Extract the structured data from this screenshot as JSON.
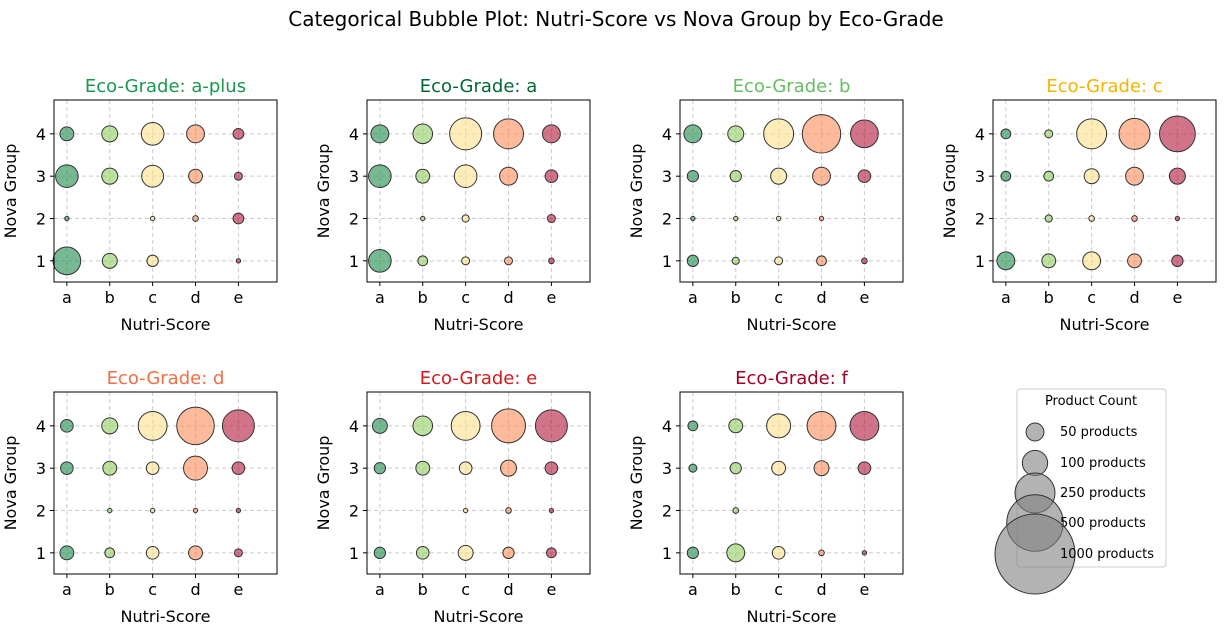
{
  "chart_data": {
    "type": "scatter",
    "title": "Categorical Bubble Plot: Nutri-Score vs Nova Group by Eco-Grade",
    "xlabel": "Nutri-Score",
    "ylabel": "Nova Group",
    "x_categories": [
      "a",
      "b",
      "c",
      "d",
      "e"
    ],
    "y_ticks": [
      "1",
      "2",
      "3",
      "4"
    ],
    "ylim": [
      0.5,
      4.8
    ],
    "grid": true,
    "nutri_colors": {
      "a": "#1a8a4a",
      "b": "#91cf60",
      "c": "#fee08b",
      "d": "#fc8d59",
      "e": "#b2183b"
    },
    "panels": [
      {
        "title": "Eco-Grade: a-plus",
        "title_color": "#1a9850",
        "points": [
          {
            "x": "a",
            "y": 1,
            "count": 120
          },
          {
            "x": "b",
            "y": 1,
            "count": 35
          },
          {
            "x": "c",
            "y": 1,
            "count": 20
          },
          {
            "x": "e",
            "y": 1,
            "count": 3
          },
          {
            "x": "a",
            "y": 2,
            "count": 3
          },
          {
            "x": "c",
            "y": 2,
            "count": 3
          },
          {
            "x": "d",
            "y": 2,
            "count": 5
          },
          {
            "x": "e",
            "y": 2,
            "count": 18
          },
          {
            "x": "a",
            "y": 3,
            "count": 80
          },
          {
            "x": "b",
            "y": 3,
            "count": 40
          },
          {
            "x": "c",
            "y": 3,
            "count": 75
          },
          {
            "x": "d",
            "y": 3,
            "count": 30
          },
          {
            "x": "e",
            "y": 3,
            "count": 10
          },
          {
            "x": "a",
            "y": 4,
            "count": 30
          },
          {
            "x": "b",
            "y": 4,
            "count": 40
          },
          {
            "x": "c",
            "y": 4,
            "count": 80
          },
          {
            "x": "d",
            "y": 4,
            "count": 50
          },
          {
            "x": "e",
            "y": 4,
            "count": 18
          }
        ]
      },
      {
        "title": "Eco-Grade: a",
        "title_color": "#006837",
        "points": [
          {
            "x": "a",
            "y": 1,
            "count": 80
          },
          {
            "x": "b",
            "y": 1,
            "count": 15
          },
          {
            "x": "c",
            "y": 1,
            "count": 10
          },
          {
            "x": "d",
            "y": 1,
            "count": 10
          },
          {
            "x": "e",
            "y": 1,
            "count": 5
          },
          {
            "x": "b",
            "y": 2,
            "count": 3
          },
          {
            "x": "c",
            "y": 2,
            "count": 8
          },
          {
            "x": "e",
            "y": 2,
            "count": 10
          },
          {
            "x": "a",
            "y": 3,
            "count": 80
          },
          {
            "x": "b",
            "y": 3,
            "count": 30
          },
          {
            "x": "c",
            "y": 3,
            "count": 80
          },
          {
            "x": "d",
            "y": 3,
            "count": 50
          },
          {
            "x": "e",
            "y": 3,
            "count": 25
          },
          {
            "x": "a",
            "y": 4,
            "count": 50
          },
          {
            "x": "b",
            "y": 4,
            "count": 60
          },
          {
            "x": "c",
            "y": 4,
            "count": 160
          },
          {
            "x": "d",
            "y": 4,
            "count": 140
          },
          {
            "x": "e",
            "y": 4,
            "count": 50
          }
        ]
      },
      {
        "title": "Eco-Grade: b",
        "title_color": "#66bd63",
        "points": [
          {
            "x": "a",
            "y": 1,
            "count": 20
          },
          {
            "x": "b",
            "y": 1,
            "count": 8
          },
          {
            "x": "c",
            "y": 1,
            "count": 10
          },
          {
            "x": "d",
            "y": 1,
            "count": 15
          },
          {
            "x": "e",
            "y": 1,
            "count": 5
          },
          {
            "x": "a",
            "y": 2,
            "count": 3
          },
          {
            "x": "b",
            "y": 2,
            "count": 3
          },
          {
            "x": "c",
            "y": 2,
            "count": 3
          },
          {
            "x": "d",
            "y": 2,
            "count": 3
          },
          {
            "x": "a",
            "y": 3,
            "count": 20
          },
          {
            "x": "b",
            "y": 3,
            "count": 20
          },
          {
            "x": "c",
            "y": 3,
            "count": 40
          },
          {
            "x": "d",
            "y": 3,
            "count": 50
          },
          {
            "x": "e",
            "y": 3,
            "count": 25
          },
          {
            "x": "a",
            "y": 4,
            "count": 50
          },
          {
            "x": "b",
            "y": 4,
            "count": 40
          },
          {
            "x": "c",
            "y": 4,
            "count": 140
          },
          {
            "x": "d",
            "y": 4,
            "count": 230
          },
          {
            "x": "e",
            "y": 4,
            "count": 120
          }
        ]
      },
      {
        "title": "Eco-Grade: c",
        "title_color": "#f4b400",
        "points": [
          {
            "x": "a",
            "y": 1,
            "count": 50
          },
          {
            "x": "b",
            "y": 1,
            "count": 30
          },
          {
            "x": "c",
            "y": 1,
            "count": 50
          },
          {
            "x": "d",
            "y": 1,
            "count": 30
          },
          {
            "x": "e",
            "y": 1,
            "count": 20
          },
          {
            "x": "b",
            "y": 2,
            "count": 8
          },
          {
            "x": "c",
            "y": 2,
            "count": 5
          },
          {
            "x": "d",
            "y": 2,
            "count": 5
          },
          {
            "x": "e",
            "y": 2,
            "count": 3
          },
          {
            "x": "a",
            "y": 3,
            "count": 15
          },
          {
            "x": "b",
            "y": 3,
            "count": 15
          },
          {
            "x": "c",
            "y": 3,
            "count": 35
          },
          {
            "x": "d",
            "y": 3,
            "count": 50
          },
          {
            "x": "e",
            "y": 3,
            "count": 40
          },
          {
            "x": "a",
            "y": 4,
            "count": 15
          },
          {
            "x": "b",
            "y": 4,
            "count": 10
          },
          {
            "x": "c",
            "y": 4,
            "count": 140
          },
          {
            "x": "d",
            "y": 4,
            "count": 150
          },
          {
            "x": "e",
            "y": 4,
            "count": 200
          }
        ]
      },
      {
        "title": "Eco-Grade: d",
        "title_color": "#f46d43",
        "points": [
          {
            "x": "a",
            "y": 1,
            "count": 30
          },
          {
            "x": "b",
            "y": 1,
            "count": 15
          },
          {
            "x": "c",
            "y": 1,
            "count": 25
          },
          {
            "x": "d",
            "y": 1,
            "count": 30
          },
          {
            "x": "e",
            "y": 1,
            "count": 10
          },
          {
            "x": "b",
            "y": 2,
            "count": 3
          },
          {
            "x": "c",
            "y": 2,
            "count": 3
          },
          {
            "x": "d",
            "y": 2,
            "count": 3
          },
          {
            "x": "e",
            "y": 2,
            "count": 3
          },
          {
            "x": "a",
            "y": 3,
            "count": 25
          },
          {
            "x": "b",
            "y": 3,
            "count": 30
          },
          {
            "x": "c",
            "y": 3,
            "count": 25
          },
          {
            "x": "d",
            "y": 3,
            "count": 90
          },
          {
            "x": "e",
            "y": 3,
            "count": 25
          },
          {
            "x": "a",
            "y": 4,
            "count": 25
          },
          {
            "x": "b",
            "y": 4,
            "count": 40
          },
          {
            "x": "c",
            "y": 4,
            "count": 130
          },
          {
            "x": "d",
            "y": 4,
            "count": 220
          },
          {
            "x": "e",
            "y": 4,
            "count": 160
          }
        ]
      },
      {
        "title": "Eco-Grade: e",
        "title_color": "#d7191c",
        "points": [
          {
            "x": "a",
            "y": 1,
            "count": 20
          },
          {
            "x": "b",
            "y": 1,
            "count": 25
          },
          {
            "x": "c",
            "y": 1,
            "count": 35
          },
          {
            "x": "d",
            "y": 1,
            "count": 20
          },
          {
            "x": "e",
            "y": 1,
            "count": 15
          },
          {
            "x": "c",
            "y": 2,
            "count": 3
          },
          {
            "x": "d",
            "y": 2,
            "count": 5
          },
          {
            "x": "e",
            "y": 2,
            "count": 3
          },
          {
            "x": "a",
            "y": 3,
            "count": 20
          },
          {
            "x": "b",
            "y": 3,
            "count": 30
          },
          {
            "x": "c",
            "y": 3,
            "count": 25
          },
          {
            "x": "d",
            "y": 3,
            "count": 40
          },
          {
            "x": "e",
            "y": 3,
            "count": 25
          },
          {
            "x": "a",
            "y": 4,
            "count": 35
          },
          {
            "x": "b",
            "y": 4,
            "count": 60
          },
          {
            "x": "c",
            "y": 4,
            "count": 130
          },
          {
            "x": "d",
            "y": 4,
            "count": 180
          },
          {
            "x": "e",
            "y": 4,
            "count": 160
          }
        ]
      },
      {
        "title": "Eco-Grade: f",
        "title_color": "#a50026",
        "points": [
          {
            "x": "a",
            "y": 1,
            "count": 20
          },
          {
            "x": "b",
            "y": 1,
            "count": 50
          },
          {
            "x": "c",
            "y": 1,
            "count": 25
          },
          {
            "x": "d",
            "y": 1,
            "count": 5
          },
          {
            "x": "e",
            "y": 1,
            "count": 3
          },
          {
            "x": "b",
            "y": 2,
            "count": 5
          },
          {
            "x": "a",
            "y": 3,
            "count": 10
          },
          {
            "x": "b",
            "y": 3,
            "count": 20
          },
          {
            "x": "c",
            "y": 3,
            "count": 30
          },
          {
            "x": "d",
            "y": 3,
            "count": 35
          },
          {
            "x": "e",
            "y": 3,
            "count": 25
          },
          {
            "x": "a",
            "y": 4,
            "count": 15
          },
          {
            "x": "b",
            "y": 4,
            "count": 30
          },
          {
            "x": "c",
            "y": 4,
            "count": 90
          },
          {
            "x": "d",
            "y": 4,
            "count": 130
          },
          {
            "x": "e",
            "y": 4,
            "count": 130
          }
        ]
      }
    ],
    "legend": {
      "title": "Product Count",
      "placement": "bottom-right panel",
      "color": "#808080",
      "entries": [
        {
          "label": "50 products",
          "count": 50
        },
        {
          "label": "100 products",
          "count": 100
        },
        {
          "label": "250 products",
          "count": 250
        },
        {
          "label": "500 products",
          "count": 500
        },
        {
          "label": "1000 products",
          "count": 1000
        }
      ]
    }
  }
}
